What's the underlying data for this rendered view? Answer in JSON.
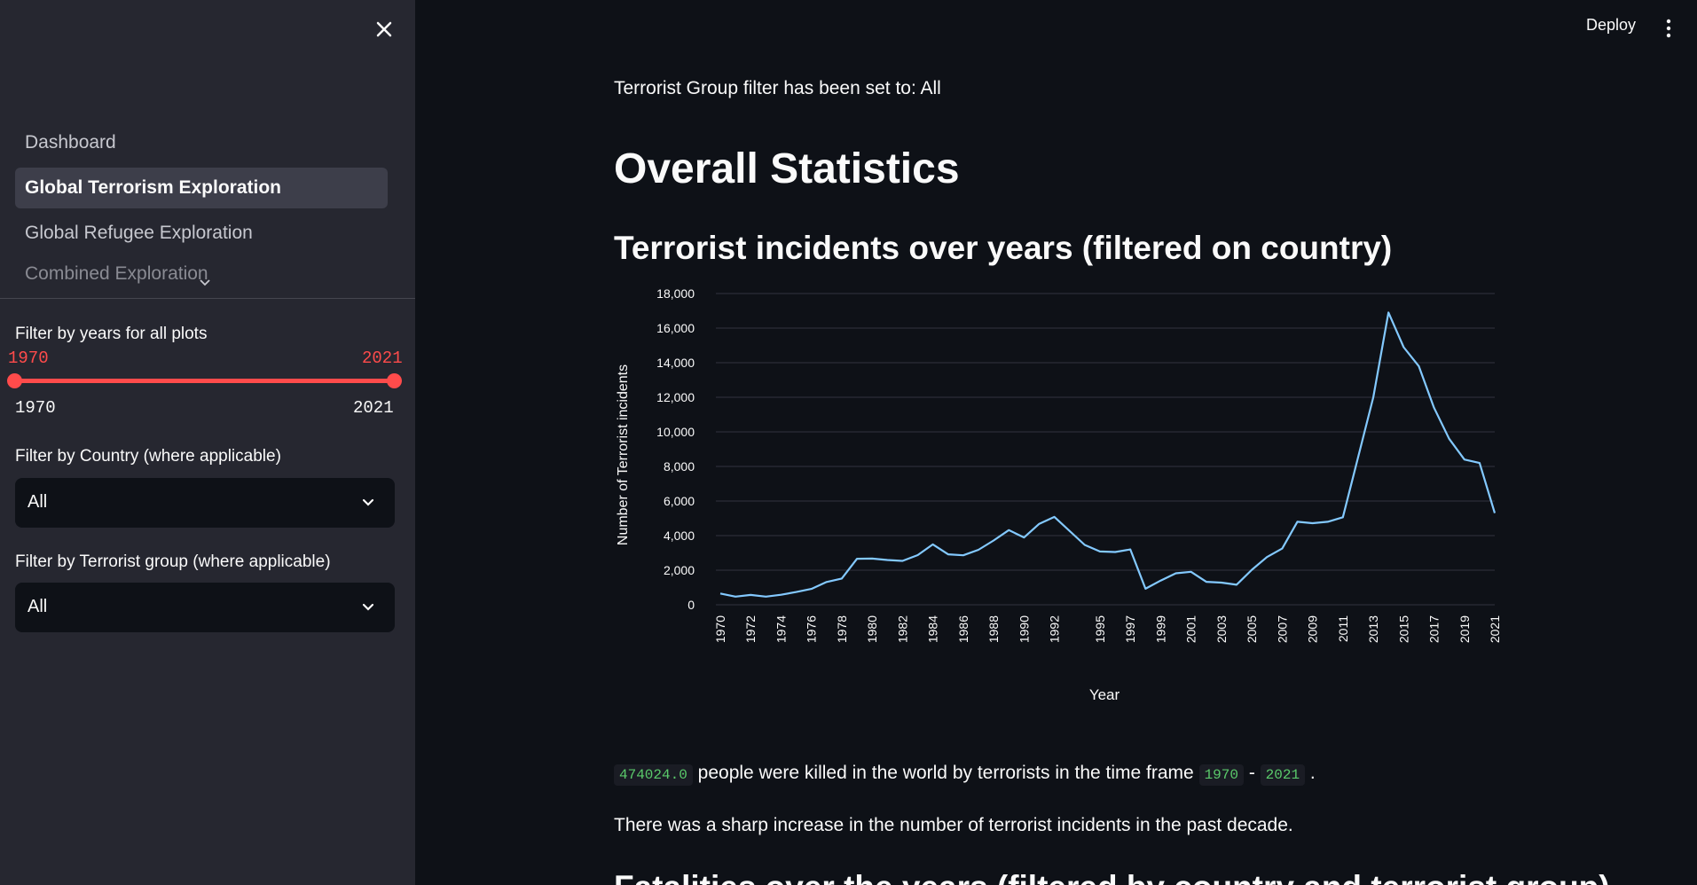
{
  "sidebar": {
    "nav_items": [
      {
        "label": "Dashboard"
      },
      {
        "label": "Global Terrorism Exploration"
      },
      {
        "label": "Global Refugee Exploration"
      },
      {
        "label": "Combined Exploration"
      }
    ],
    "years_filter": {
      "label": "Filter by years for all plots",
      "selected_min": "1970",
      "selected_max": "2021",
      "range_min": "1970",
      "range_max": "2021"
    },
    "country_filter": {
      "label": "Filter by Country (where applicable)",
      "value": "All"
    },
    "group_filter": {
      "label": "Filter by Terrorist group (where applicable)",
      "value": "All"
    }
  },
  "header": {
    "deploy_label": "Deploy"
  },
  "main": {
    "filter_note": "Terrorist Group filter has been set to: All",
    "title": "Overall Statistics",
    "chart_title": "Terrorist incidents over years (filtered on country)",
    "killed_count": "474024.0",
    "killed_text": "people were killed in the world by terrorists in the time frame",
    "range_start": "1970",
    "range_sep": "-",
    "range_end": "2021",
    "period": ".",
    "trend_text": "There was a sharp increase in the number of terrorist incidents in the past decade.",
    "next_heading_partial": "Fatalities over the years (filtered by country and terrorist group)"
  },
  "colors": {
    "accent": "#ff4b4b",
    "line": "#83c9ff",
    "code": "#5ac96a"
  },
  "chart_data": {
    "type": "line",
    "xlabel": "Year",
    "ylabel": "Number of Terrorist incidents",
    "ylim": [
      0,
      18000
    ],
    "yticks": [
      "0",
      "2,000",
      "4,000",
      "6,000",
      "8,000",
      "10,000",
      "12,000",
      "14,000",
      "16,000",
      "18,000"
    ],
    "x": [
      1970,
      1971,
      1972,
      1973,
      1974,
      1975,
      1976,
      1977,
      1978,
      1979,
      1980,
      1981,
      1982,
      1983,
      1984,
      1985,
      1986,
      1987,
      1988,
      1989,
      1990,
      1991,
      1992,
      1994,
      1995,
      1996,
      1997,
      1998,
      1999,
      2000,
      2001,
      2002,
      2003,
      2004,
      2005,
      2006,
      2007,
      2008,
      2009,
      2010,
      2011,
      2012,
      2013,
      2014,
      2015,
      2016,
      2017,
      2018,
      2019,
      2020,
      2021
    ],
    "xticks": [
      1970,
      1972,
      1974,
      1976,
      1978,
      1980,
      1982,
      1984,
      1986,
      1988,
      1990,
      1992,
      1995,
      1997,
      1999,
      2001,
      2003,
      2005,
      2007,
      2009,
      2011,
      2013,
      2015,
      2017,
      2019,
      2021
    ],
    "series": [
      {
        "values": [
          650,
          470,
          570,
          470,
          580,
          740,
          920,
          1320,
          1520,
          2660,
          2670,
          2590,
          2540,
          2870,
          3490,
          2920,
          2860,
          3180,
          3720,
          4320,
          3890,
          4680,
          5080,
          3460,
          3080,
          3050,
          3200,
          930,
          1400,
          1820,
          1910,
          1330,
          1280,
          1160,
          2020,
          2760,
          3250,
          4800,
          4720,
          4800,
          5060,
          8520,
          12000,
          16900,
          14900,
          13800,
          11400,
          9600,
          8400,
          8200,
          5300
        ]
      }
    ]
  }
}
